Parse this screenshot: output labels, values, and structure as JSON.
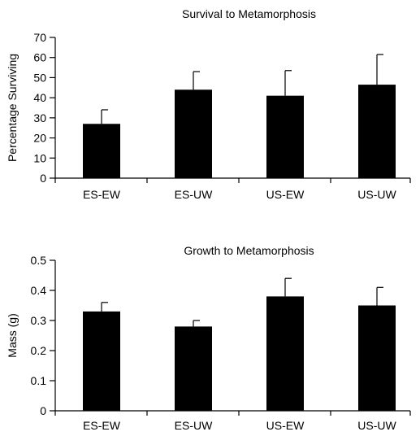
{
  "chart_data": [
    {
      "type": "bar",
      "title": "Survival to Metamorphosis",
      "xlabel": "",
      "ylabel": "Percentage Surviving",
      "ylim": [
        0,
        70
      ],
      "yticks": [
        "0",
        "10",
        "20",
        "30",
        "40",
        "50",
        "60",
        "70"
      ],
      "categories": [
        "ES-EW",
        "ES-UW",
        "US-EW",
        "US-UW"
      ],
      "values": [
        27,
        44,
        41,
        46.5
      ],
      "error_upper": [
        7,
        9,
        12.5,
        15
      ],
      "bar_color": "#000000",
      "grid": false
    },
    {
      "type": "bar",
      "title": "Growth to Metamorphosis",
      "xlabel": "",
      "ylabel": "Mass (g)",
      "ylim": [
        0,
        0.5
      ],
      "yticks": [
        "0",
        "0.1",
        "0.2",
        "0.3",
        "0.4",
        "0.5"
      ],
      "categories": [
        "ES-EW",
        "ES-UW",
        "US-EW",
        "US-UW"
      ],
      "values": [
        0.33,
        0.28,
        0.38,
        0.35
      ],
      "error_upper": [
        0.03,
        0.02,
        0.06,
        0.06
      ],
      "bar_color": "#000000",
      "grid": false
    }
  ]
}
